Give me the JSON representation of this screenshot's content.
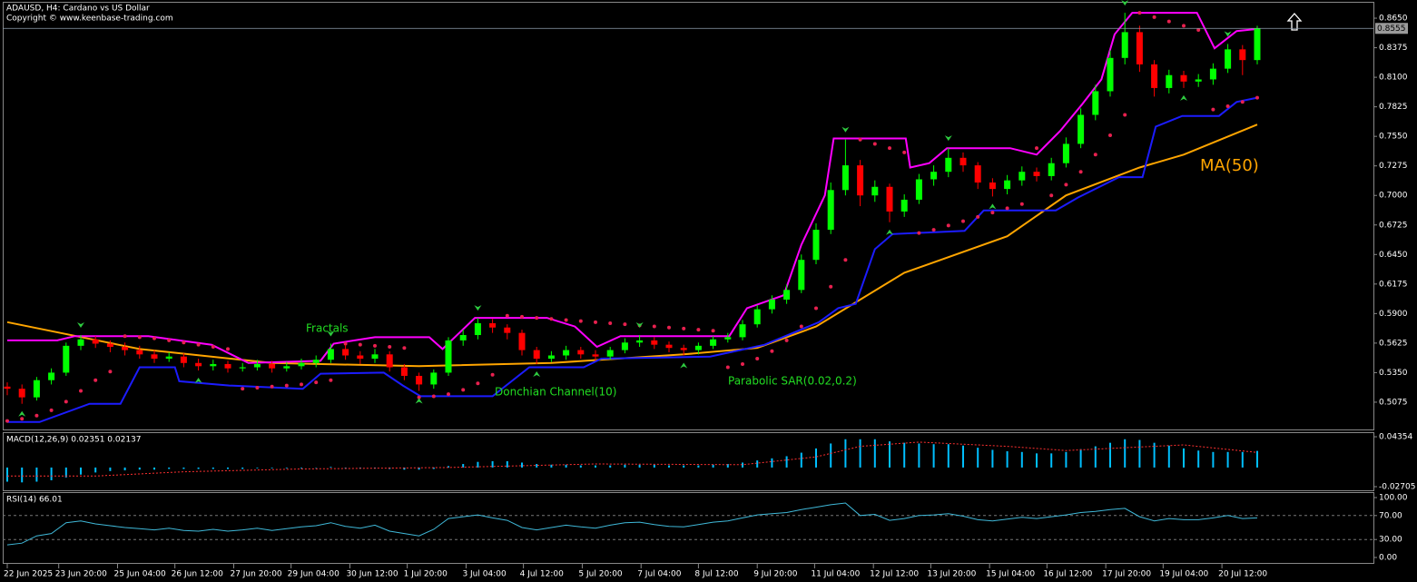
{
  "header": {
    "title": "ADAUSD, H4:  Cardano vs US Dollar",
    "copyright": "Copyright © www.keenbase-trading.com"
  },
  "chart_data": [
    {
      "type": "candlestick",
      "bull_color": "#00ff00",
      "bear_color": "#ff0000",
      "open": [
        0.522,
        0.52,
        0.512,
        0.528,
        0.535,
        0.56,
        0.566,
        0.562,
        0.559,
        0.556,
        0.552,
        0.548,
        0.55,
        0.544,
        0.541,
        0.543,
        0.539,
        0.54,
        0.543,
        0.539,
        0.541,
        0.544,
        0.547,
        0.557,
        0.551,
        0.548,
        0.552,
        0.54,
        0.532,
        0.524,
        0.535,
        0.565,
        0.57,
        0.581,
        0.577,
        0.572,
        0.556,
        0.548,
        0.551,
        0.556,
        0.552,
        0.55,
        0.556,
        0.563,
        0.565,
        0.561,
        0.558,
        0.556,
        0.56,
        0.566,
        0.568,
        0.58,
        0.594,
        0.603,
        0.612,
        0.64,
        0.668,
        0.705,
        0.728,
        0.7,
        0.708,
        0.685,
        0.696,
        0.715,
        0.722,
        0.735,
        0.728,
        0.712,
        0.706,
        0.714,
        0.722,
        0.718,
        0.73,
        0.748,
        0.775,
        0.797,
        0.828,
        0.852,
        0.822,
        0.8,
        0.812,
        0.806,
        0.808,
        0.818,
        0.836,
        0.826
      ],
      "high": [
        0.526,
        0.524,
        0.531,
        0.539,
        0.563,
        0.57,
        0.569,
        0.565,
        0.563,
        0.56,
        0.556,
        0.554,
        0.553,
        0.548,
        0.547,
        0.546,
        0.544,
        0.547,
        0.546,
        0.545,
        0.548,
        0.551,
        0.562,
        0.561,
        0.555,
        0.557,
        0.555,
        0.543,
        0.535,
        0.538,
        0.568,
        0.575,
        0.586,
        0.585,
        0.58,
        0.575,
        0.559,
        0.555,
        0.56,
        0.559,
        0.556,
        0.559,
        0.567,
        0.57,
        0.568,
        0.564,
        0.561,
        0.563,
        0.569,
        0.572,
        0.584,
        0.598,
        0.607,
        0.617,
        0.645,
        0.674,
        0.712,
        0.752,
        0.733,
        0.714,
        0.711,
        0.701,
        0.72,
        0.728,
        0.744,
        0.74,
        0.731,
        0.716,
        0.719,
        0.727,
        0.726,
        0.735,
        0.754,
        0.781,
        0.803,
        0.835,
        0.87,
        0.858,
        0.826,
        0.817,
        0.816,
        0.813,
        0.823,
        0.841,
        0.84,
        0.858
      ],
      "low": [
        0.514,
        0.506,
        0.509,
        0.524,
        0.532,
        0.556,
        0.558,
        0.554,
        0.551,
        0.548,
        0.544,
        0.545,
        0.54,
        0.537,
        0.537,
        0.535,
        0.536,
        0.537,
        0.535,
        0.536,
        0.538,
        0.54,
        0.544,
        0.547,
        0.543,
        0.544,
        0.536,
        0.528,
        0.518,
        0.52,
        0.532,
        0.56,
        0.566,
        0.572,
        0.566,
        0.551,
        0.543,
        0.545,
        0.547,
        0.548,
        0.546,
        0.547,
        0.553,
        0.559,
        0.557,
        0.554,
        0.551,
        0.552,
        0.557,
        0.563,
        0.565,
        0.577,
        0.59,
        0.599,
        0.609,
        0.636,
        0.664,
        0.7,
        0.69,
        0.694,
        0.675,
        0.68,
        0.692,
        0.709,
        0.717,
        0.722,
        0.706,
        0.699,
        0.701,
        0.709,
        0.713,
        0.714,
        0.726,
        0.744,
        0.77,
        0.792,
        0.822,
        0.815,
        0.792,
        0.795,
        0.8,
        0.801,
        0.803,
        0.814,
        0.812,
        0.822
      ],
      "close": [
        0.52,
        0.512,
        0.528,
        0.535,
        0.56,
        0.566,
        0.562,
        0.559,
        0.556,
        0.552,
        0.548,
        0.55,
        0.544,
        0.541,
        0.543,
        0.539,
        0.54,
        0.543,
        0.539,
        0.541,
        0.544,
        0.547,
        0.557,
        0.551,
        0.548,
        0.552,
        0.54,
        0.532,
        0.524,
        0.535,
        0.565,
        0.57,
        0.581,
        0.577,
        0.572,
        0.556,
        0.548,
        0.551,
        0.556,
        0.552,
        0.55,
        0.556,
        0.563,
        0.565,
        0.561,
        0.558,
        0.556,
        0.56,
        0.566,
        0.568,
        0.58,
        0.594,
        0.603,
        0.612,
        0.64,
        0.668,
        0.705,
        0.728,
        0.7,
        0.708,
        0.685,
        0.696,
        0.715,
        0.722,
        0.735,
        0.728,
        0.712,
        0.706,
        0.714,
        0.722,
        0.718,
        0.73,
        0.748,
        0.775,
        0.797,
        0.828,
        0.852,
        0.822,
        0.8,
        0.812,
        0.806,
        0.808,
        0.818,
        0.836,
        0.826,
        0.8555
      ],
      "current_price": 0.8555,
      "ylim": [
        0.4821,
        0.8794
      ],
      "yticks": [
        {
          "value": 0.865,
          "label": "0.8650"
        },
        {
          "value": 0.8375,
          "label": "0.8375"
        },
        {
          "value": 0.81,
          "label": "0.8100"
        },
        {
          "value": 0.7825,
          "label": "0.7825"
        },
        {
          "value": 0.755,
          "label": "0.7550"
        },
        {
          "value": 0.7275,
          "label": "0.7275"
        },
        {
          "value": 0.7,
          "label": "0.7000"
        },
        {
          "value": 0.6725,
          "label": "0.6725"
        },
        {
          "value": 0.645,
          "label": "0.6450"
        },
        {
          "value": 0.6175,
          "label": "0.6175"
        },
        {
          "value": 0.59,
          "label": "0.5900"
        },
        {
          "value": 0.5625,
          "label": "0.5625"
        },
        {
          "value": 0.535,
          "label": "0.5350"
        },
        {
          "value": 0.5075,
          "label": "0.5075"
        }
      ],
      "xticks": [
        {
          "value": 0,
          "label": "22 Jun 2025"
        },
        {
          "value": 3.5,
          "label": "23 Jun 20:00"
        },
        {
          "value": 7.5,
          "label": "25 Jun 04:00"
        },
        {
          "value": 11.4,
          "label": "26 Jun 12:00"
        },
        {
          "value": 15.4,
          "label": "27 Jun 20:00"
        },
        {
          "value": 19.3,
          "label": "29 Jun 04:00"
        },
        {
          "value": 23.3,
          "label": "30 Jun 12:00"
        },
        {
          "value": 27.2,
          "label": "1 Jul 20:00"
        },
        {
          "value": 31.2,
          "label": "3 Jul 04:00"
        },
        {
          "value": 35.1,
          "label": "4 Jul 12:00"
        },
        {
          "value": 39.1,
          "label": "5 Jul 20:00"
        },
        {
          "value": 43.1,
          "label": "7 Jul 04:00"
        },
        {
          "value": 47,
          "label": "8 Jul 12:00"
        },
        {
          "value": 51,
          "label": "9 Jul 20:00"
        },
        {
          "value": 54.9,
          "label": "11 Jul 04:00"
        },
        {
          "value": 58.9,
          "label": "12 Jul 12:00"
        },
        {
          "value": 62.8,
          "label": "13 Jul 20:00"
        },
        {
          "value": 66.8,
          "label": "15 Jul 04:00"
        },
        {
          "value": 70.7,
          "label": "16 Jul 12:00"
        },
        {
          "value": 74.7,
          "label": "17 Jul 20:00"
        },
        {
          "value": 78.6,
          "label": "19 Jul 04:00"
        },
        {
          "value": 82.6,
          "label": "20 Jul 12:00"
        }
      ],
      "ma": {
        "color": "#ffa500",
        "x": [
          0,
          9,
          18,
          28,
          37,
          46,
          51,
          55,
          61,
          68,
          72,
          77,
          80,
          85
        ],
        "values": [
          0.582,
          0.557,
          0.544,
          0.541,
          0.544,
          0.552,
          0.558,
          0.578,
          0.628,
          0.662,
          0.7,
          0.726,
          0.738,
          0.766
        ]
      },
      "donchian_upper": {
        "color": "#ff00ff",
        "x": [
          0,
          3.4,
          4.6,
          9.6,
          13.9,
          16.4,
          21.3,
          22.2,
          25,
          28.7,
          29.6,
          31.8,
          36.7,
          38.6,
          40.1,
          41.7,
          49.1,
          50.3,
          52.8,
          54,
          55.6,
          56.2,
          61.1,
          61.4,
          62.7,
          63.9,
          68.2,
          70,
          71.6,
          73.1,
          74.4,
          75.3,
          76.5,
          80.9,
          82.1,
          83.6,
          85
        ],
        "values": [
          0.565,
          0.565,
          0.569,
          0.569,
          0.561,
          0.544,
          0.546,
          0.562,
          0.568,
          0.568,
          0.557,
          0.586,
          0.586,
          0.578,
          0.559,
          0.569,
          0.569,
          0.595,
          0.607,
          0.654,
          0.7,
          0.753,
          0.753,
          0.726,
          0.73,
          0.744,
          0.744,
          0.738,
          0.76,
          0.785,
          0.808,
          0.85,
          0.87,
          0.87,
          0.837,
          0.853,
          0.855
        ]
      },
      "donchian_lower": {
        "color": "#1c1cff",
        "x": [
          0,
          2.2,
          5.6,
          7.7,
          9,
          11.4,
          11.7,
          15.1,
          20.1,
          21.3,
          25.6,
          26.9,
          28.1,
          33,
          35.5,
          39.2,
          40.4,
          47.8,
          51.5,
          55.2,
          56.5,
          57.7,
          59,
          60.2,
          65.1,
          66.4,
          71.3,
          72.8,
          75.6,
          77.2,
          78.1,
          79.9,
          82.4,
          83.6,
          85
        ],
        "values": [
          0.489,
          0.489,
          0.506,
          0.506,
          0.54,
          0.54,
          0.527,
          0.523,
          0.52,
          0.534,
          0.535,
          0.523,
          0.513,
          0.513,
          0.54,
          0.54,
          0.548,
          0.55,
          0.561,
          0.582,
          0.595,
          0.599,
          0.65,
          0.664,
          0.667,
          0.686,
          0.686,
          0.698,
          0.717,
          0.717,
          0.764,
          0.774,
          0.774,
          0.787,
          0.791
        ]
      },
      "sar": {
        "color": "#e8204f",
        "values": [
          0.49,
          0.492,
          0.495,
          0.5,
          0.508,
          0.518,
          0.528,
          0.536,
          0.569,
          0.568,
          0.567,
          0.565,
          0.563,
          0.561,
          0.559,
          0.557,
          0.52,
          0.521,
          0.522,
          0.523,
          0.524,
          0.526,
          0.528,
          0.562,
          0.561,
          0.56,
          0.559,
          0.558,
          0.512,
          0.513,
          0.515,
          0.519,
          0.525,
          0.533,
          0.588,
          0.587,
          0.586,
          0.585,
          0.584,
          0.583,
          0.582,
          0.581,
          0.58,
          0.579,
          0.578,
          0.577,
          0.576,
          0.575,
          0.574,
          0.54,
          0.543,
          0.548,
          0.555,
          0.565,
          0.578,
          0.595,
          0.615,
          0.64,
          0.752,
          0.748,
          0.744,
          0.74,
          0.665,
          0.668,
          0.672,
          0.676,
          0.68,
          0.684,
          0.688,
          0.692,
          0.744,
          0.7,
          0.71,
          0.722,
          0.738,
          0.756,
          0.775,
          0.87,
          0.866,
          0.862,
          0.858,
          0.854,
          0.78,
          0.783,
          0.787,
          0.791
        ]
      },
      "fractals_up": {
        "color": "#2ecc40",
        "x": [
          5,
          22,
          32,
          43,
          57,
          64,
          76,
          83
        ],
        "values": [
          0.57,
          0.562,
          0.586,
          0.57,
          0.752,
          0.744,
          0.87,
          0.841
        ]
      },
      "fractals_down": {
        "color": "#2ecc40",
        "x": [
          1,
          13,
          28,
          36,
          46,
          60,
          67,
          80
        ],
        "values": [
          0.506,
          0.537,
          0.518,
          0.543,
          0.551,
          0.675,
          0.699,
          0.8
        ]
      },
      "annotations": [
        {
          "text": "Fractals",
          "color": "#22dd22"
        },
        {
          "text": "Donchian Channel(10)",
          "color": "#22dd22"
        },
        {
          "text": "Parabolic SAR(0.02,0.2)",
          "color": "#22dd22"
        },
        {
          "text": "MA(50)",
          "color": "#ffa500"
        }
      ]
    },
    {
      "type": "macd",
      "title": "MACD(12,26,9) 0.02351 0.02137",
      "hist_color": "#00bfff",
      "signal_color": "#ff3030",
      "values": [
        -0.02,
        -0.021,
        -0.02,
        -0.018,
        -0.014,
        -0.01,
        -0.007,
        -0.005,
        -0.004,
        -0.003,
        -0.003,
        -0.002,
        -0.002,
        -0.002,
        -0.002,
        -0.002,
        -0.002,
        -0.001,
        -0.001,
        -0.001,
        -0.001,
        0,
        0.001,
        0,
        -0.001,
        -0.001,
        -0.002,
        -0.003,
        -0.003,
        -0.002,
        0.002,
        0.005,
        0.008,
        0.009,
        0.009,
        0.007,
        0.005,
        0.004,
        0.004,
        0.003,
        0.003,
        0.003,
        0.004,
        0.004,
        0.004,
        0.003,
        0.003,
        0.003,
        0.004,
        0.005,
        0.007,
        0.01,
        0.013,
        0.016,
        0.021,
        0.027,
        0.034,
        0.04,
        0.04,
        0.04,
        0.037,
        0.035,
        0.034,
        0.033,
        0.033,
        0.031,
        0.028,
        0.025,
        0.023,
        0.022,
        0.02,
        0.02,
        0.022,
        0.026,
        0.03,
        0.035,
        0.04,
        0.039,
        0.035,
        0.031,
        0.027,
        0.024,
        0.022,
        0.022,
        0.022,
        0.02351
      ],
      "signal": {
        "x": [
          0,
          6,
          12,
          20,
          30,
          40,
          50,
          55,
          58,
          62,
          68,
          72,
          76,
          80,
          85
        ],
        "values": [
          -0.012,
          -0.012,
          -0.006,
          -0.002,
          0,
          0.005,
          0.004,
          0.015,
          0.03,
          0.036,
          0.03,
          0.024,
          0.028,
          0.032,
          0.02137
        ]
      },
      "ylim": [
        -0.0322,
        0.0487
      ],
      "yticks": [
        0.04354,
        -0.02705
      ]
    },
    {
      "type": "line",
      "title": "RSI(14) 66.01",
      "color": "#3fb8d8",
      "values": [
        21,
        24,
        36,
        40,
        58,
        61,
        56,
        53,
        50,
        48,
        46,
        49,
        45,
        44,
        47,
        44,
        46,
        49,
        45,
        48,
        51,
        53,
        58,
        52,
        49,
        54,
        44,
        40,
        36,
        47,
        65,
        68,
        71,
        66,
        62,
        50,
        46,
        50,
        54,
        51,
        49,
        54,
        58,
        59,
        55,
        52,
        51,
        55,
        59,
        61,
        66,
        71,
        73,
        75,
        80,
        84,
        88,
        91,
        70,
        72,
        62,
        65,
        70,
        71,
        73,
        69,
        63,
        61,
        64,
        67,
        65,
        68,
        71,
        75,
        77,
        80,
        82,
        68,
        61,
        65,
        63,
        63,
        66,
        70,
        65,
        66.01
      ],
      "ylim": [
        -9.1,
        107.6
      ],
      "yticks": [
        {
          "value": 100,
          "label": "100.00"
        },
        {
          "value": 70,
          "label": "70.00"
        },
        {
          "value": 30,
          "label": "30.00"
        },
        {
          "value": 0,
          "label": "0.00"
        }
      ]
    }
  ]
}
